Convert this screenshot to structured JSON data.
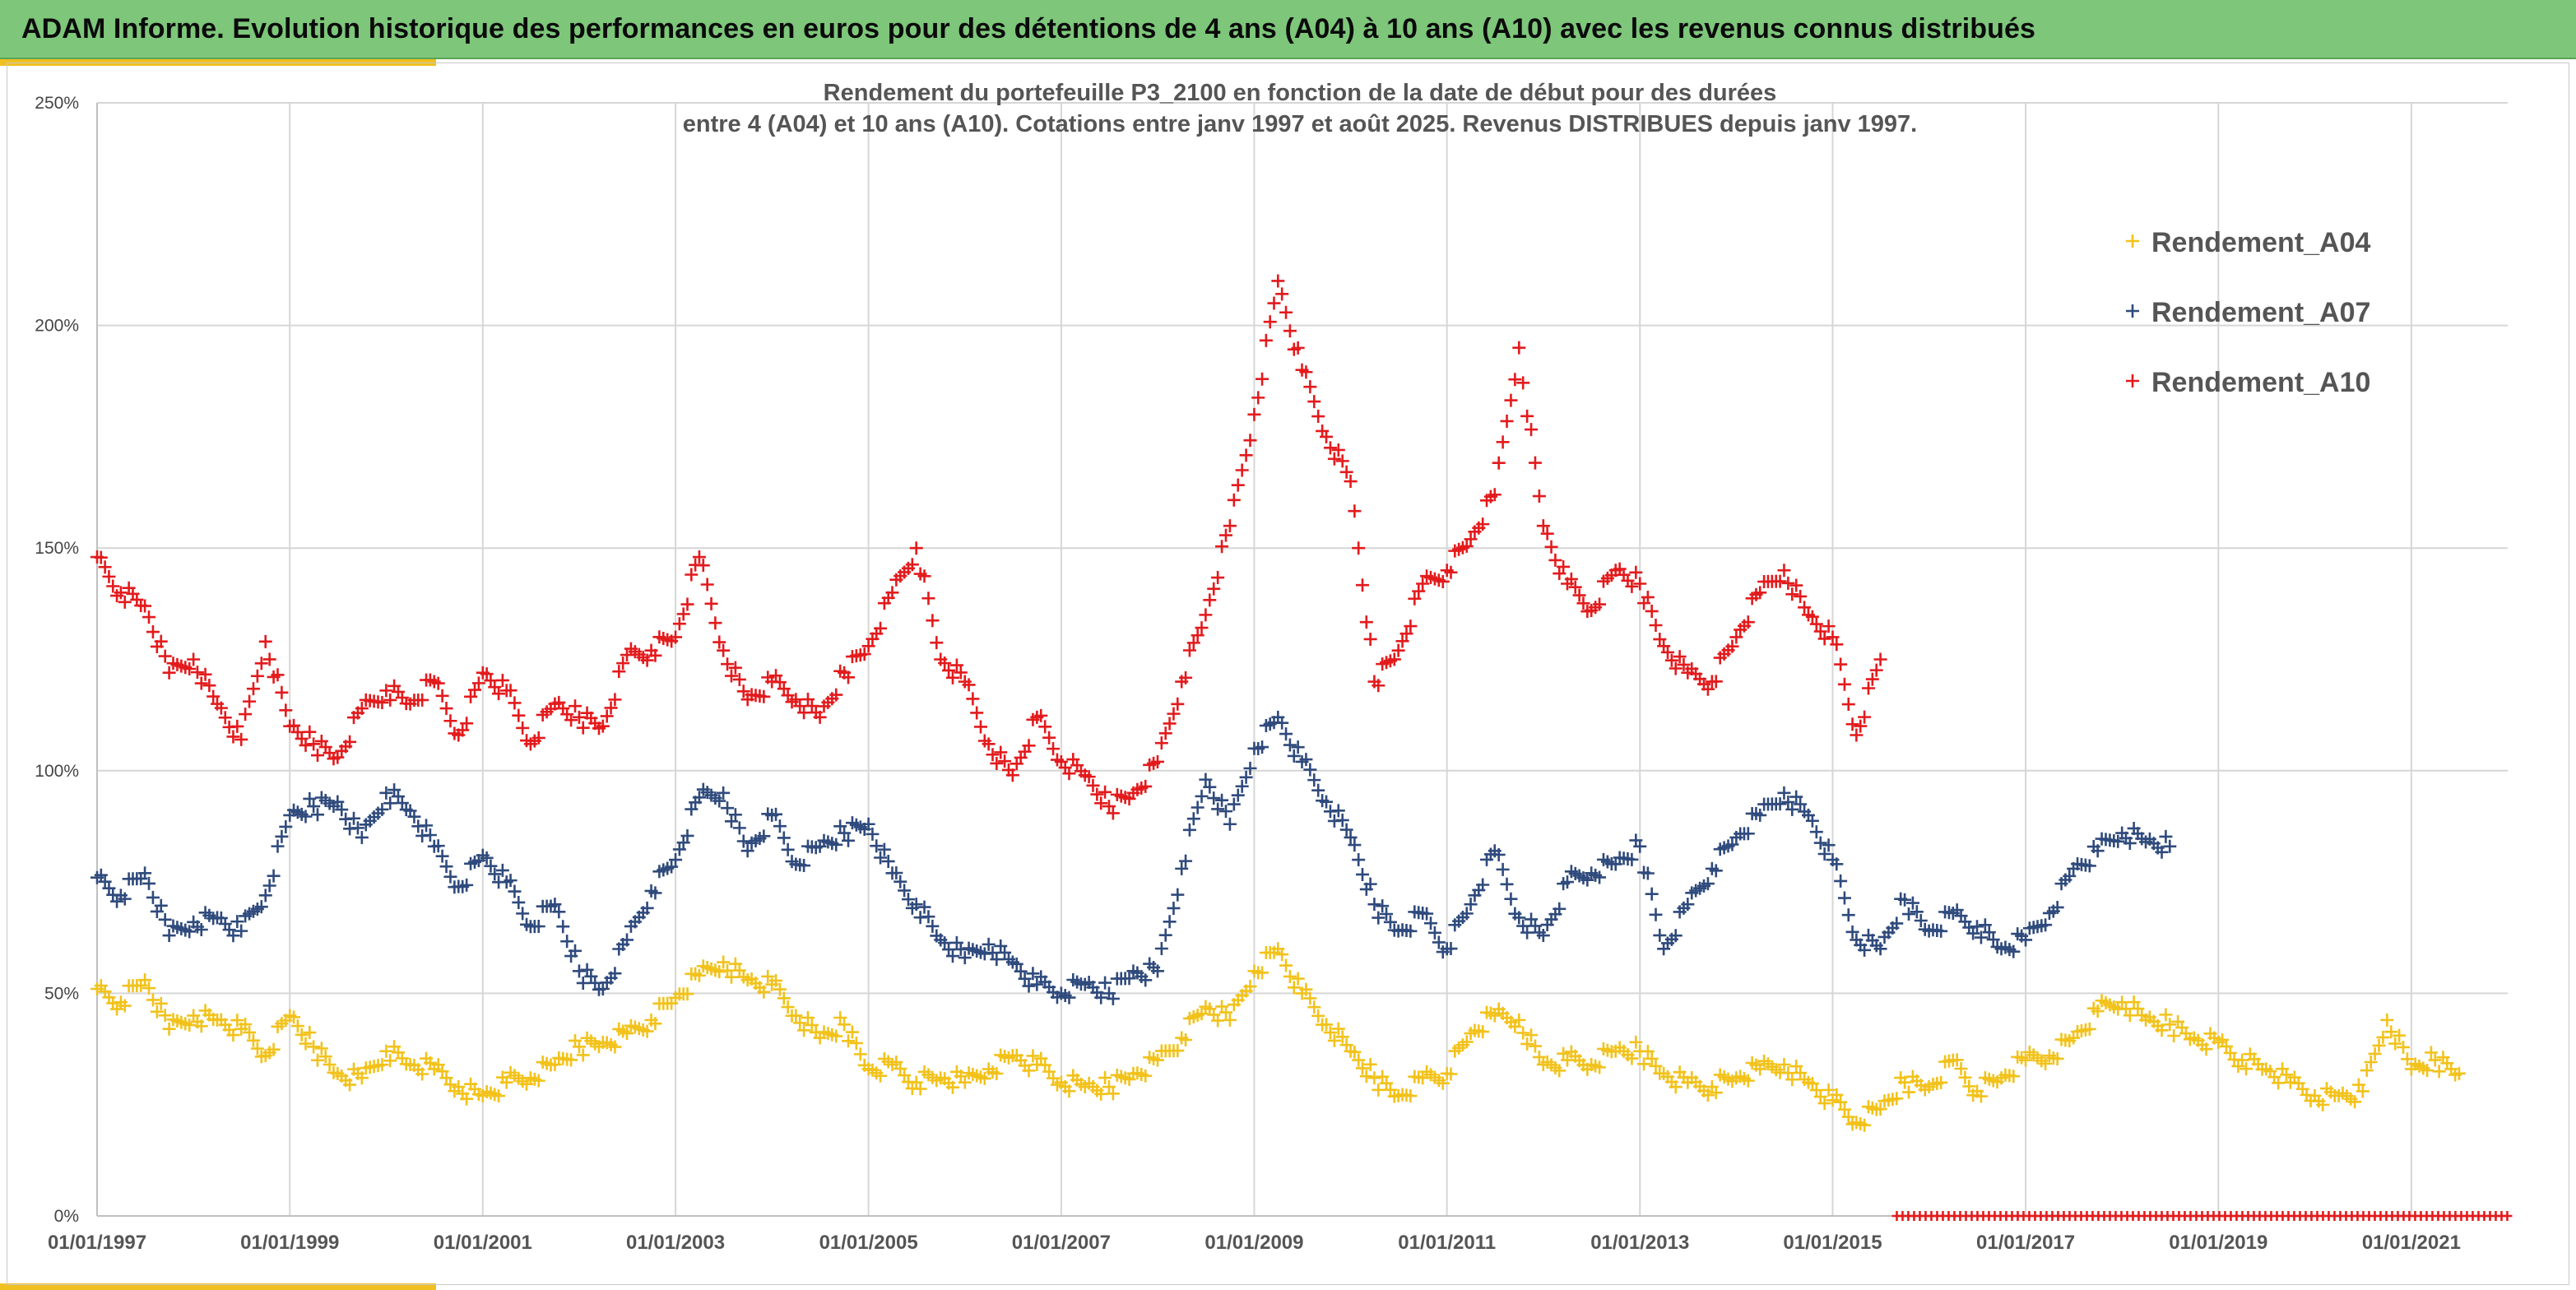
{
  "banner": {
    "title": "ADAM Informe. Evolution historique des performances en euros pour des détentions de 4 ans (A04) à 10 ans (A10) avec les revenus connus distribués"
  },
  "chart_data": {
    "type": "scatter",
    "title_line1": "Rendement du portefeuille P3_2100 en fonction de la date de début pour des durées",
    "title_line2": "entre 4 (A04) et 10 ans (A10). Cotations entre janv 1997 et août 2025. Revenus DISTRIBUES depuis janv 1997.",
    "xlim": [
      "1997-01-01",
      "2022-01-01"
    ],
    "ylim": [
      0,
      2.5
    ],
    "y_ticks": [
      "0%",
      "50%",
      "100%",
      "150%",
      "200%",
      "250%"
    ],
    "x_ticks": [
      "01/01/1997",
      "01/01/1999",
      "01/01/2001",
      "01/01/2003",
      "01/01/2005",
      "01/01/2007",
      "01/01/2009",
      "01/01/2011",
      "01/01/2013",
      "01/01/2015",
      "01/01/2017",
      "01/01/2019",
      "01/01/2021"
    ],
    "grid": true,
    "legend_position": "top-right",
    "colors": {
      "A04": "#f2c21b",
      "A07": "#2f4a7c",
      "A10": "#e31a1c"
    },
    "series": [
      {
        "name": "Rendement_A04",
        "x": [
          "1997-01-01",
          "1997-04-01",
          "1997-07-01",
          "1997-10-01",
          "1998-01-01",
          "1998-04-01",
          "1998-07-01",
          "1998-10-01",
          "1999-01-01",
          "1999-04-01",
          "1999-07-01",
          "1999-10-01",
          "2000-01-01",
          "2000-04-01",
          "2000-07-01",
          "2000-10-01",
          "2001-01-01",
          "2001-04-01",
          "2001-07-01",
          "2001-10-01",
          "2002-01-01",
          "2002-04-01",
          "2002-07-01",
          "2002-10-01",
          "2003-01-01",
          "2003-04-01",
          "2003-07-01",
          "2003-10-01",
          "2004-01-01",
          "2004-04-01",
          "2004-07-01",
          "2004-10-01",
          "2005-01-01",
          "2005-04-01",
          "2005-07-01",
          "2005-10-01",
          "2006-01-01",
          "2006-04-01",
          "2006-07-01",
          "2006-10-01",
          "2007-01-01",
          "2007-04-01",
          "2007-07-01",
          "2007-10-01",
          "2008-01-01",
          "2008-04-01",
          "2008-07-01",
          "2008-10-01",
          "2009-01-01",
          "2009-04-01",
          "2009-07-01",
          "2009-10-01",
          "2010-01-01",
          "2010-04-01",
          "2010-07-01",
          "2010-10-01",
          "2011-01-01",
          "2011-04-01",
          "2011-07-01",
          "2011-10-01",
          "2012-01-01",
          "2012-04-01",
          "2012-07-01",
          "2012-10-01",
          "2013-01-01",
          "2013-04-01",
          "2013-07-01",
          "2013-10-01",
          "2014-01-01",
          "2014-04-01",
          "2014-07-01",
          "2014-10-01",
          "2015-01-01",
          "2015-04-01",
          "2015-07-01",
          "2015-10-01",
          "2016-01-01",
          "2016-04-01",
          "2016-07-01",
          "2016-10-01",
          "2017-01-01",
          "2017-04-01",
          "2017-07-01",
          "2017-10-01",
          "2018-01-01",
          "2018-04-01",
          "2018-07-01",
          "2018-10-01",
          "2019-01-01",
          "2019-04-01",
          "2019-07-01",
          "2019-10-01",
          "2020-01-01",
          "2020-04-01",
          "2020-07-01",
          "2020-10-01",
          "2021-01-01",
          "2021-04-01",
          "2021-07-01"
        ],
        "y": [
          0.51,
          0.48,
          0.53,
          0.42,
          0.45,
          0.44,
          0.42,
          0.36,
          0.45,
          0.38,
          0.32,
          0.31,
          0.37,
          0.34,
          0.33,
          0.29,
          0.27,
          0.3,
          0.31,
          0.34,
          0.38,
          0.39,
          0.41,
          0.44,
          0.49,
          0.54,
          0.57,
          0.53,
          0.52,
          0.45,
          0.4,
          0.43,
          0.33,
          0.34,
          0.3,
          0.31,
          0.3,
          0.33,
          0.36,
          0.34,
          0.3,
          0.29,
          0.29,
          0.32,
          0.35,
          0.4,
          0.47,
          0.44,
          0.55,
          0.6,
          0.5,
          0.43,
          0.37,
          0.31,
          0.27,
          0.31,
          0.32,
          0.41,
          0.45,
          0.44,
          0.34,
          0.35,
          0.34,
          0.37,
          0.37,
          0.32,
          0.3,
          0.29,
          0.31,
          0.33,
          0.34,
          0.3,
          0.26,
          0.21,
          0.24,
          0.3,
          0.29,
          0.35,
          0.28,
          0.31,
          0.35,
          0.36,
          0.4,
          0.46,
          0.48,
          0.44,
          0.43,
          0.4,
          0.39,
          0.35,
          0.33,
          0.3,
          0.27,
          0.27,
          0.28,
          0.44,
          0.33,
          0.35,
          0.32
        ]
      },
      {
        "name": "Rendement_A07",
        "x": [
          "1997-01-01",
          "1997-04-01",
          "1997-07-01",
          "1997-10-01",
          "1998-01-01",
          "1998-04-01",
          "1998-07-01",
          "1998-10-01",
          "1999-01-01",
          "1999-04-01",
          "1999-07-01",
          "1999-10-01",
          "2000-01-01",
          "2000-04-01",
          "2000-07-01",
          "2000-10-01",
          "2001-01-01",
          "2001-04-01",
          "2001-07-01",
          "2001-10-01",
          "2002-01-01",
          "2002-04-01",
          "2002-07-01",
          "2002-10-01",
          "2003-01-01",
          "2003-04-01",
          "2003-07-01",
          "2003-10-01",
          "2004-01-01",
          "2004-04-01",
          "2004-07-01",
          "2004-10-01",
          "2005-01-01",
          "2005-04-01",
          "2005-07-01",
          "2005-10-01",
          "2006-01-01",
          "2006-04-01",
          "2006-07-01",
          "2006-10-01",
          "2007-01-01",
          "2007-04-01",
          "2007-07-01",
          "2007-10-01",
          "2008-01-01",
          "2008-04-01",
          "2008-07-01",
          "2008-10-01",
          "2009-01-01",
          "2009-04-01",
          "2009-07-01",
          "2009-10-01",
          "2010-01-01",
          "2010-04-01",
          "2010-07-01",
          "2010-10-01",
          "2011-01-01",
          "2011-04-01",
          "2011-07-01",
          "2011-10-01",
          "2012-01-01",
          "2012-04-01",
          "2012-07-01",
          "2012-10-01",
          "2013-01-01",
          "2013-04-01",
          "2013-07-01",
          "2013-10-01",
          "2014-01-01",
          "2014-04-01",
          "2014-07-01",
          "2014-10-01",
          "2015-01-01",
          "2015-04-01",
          "2015-07-01",
          "2015-10-01",
          "2016-01-01",
          "2016-04-01",
          "2016-07-01",
          "2016-10-01",
          "2017-01-01",
          "2017-04-01",
          "2017-07-01",
          "2017-10-01",
          "2018-01-01",
          "2018-04-01",
          "2018-07-01"
        ],
        "y": [
          0.76,
          0.72,
          0.77,
          0.63,
          0.66,
          0.67,
          0.64,
          0.72,
          0.9,
          0.92,
          0.93,
          0.85,
          0.95,
          0.91,
          0.83,
          0.74,
          0.81,
          0.75,
          0.65,
          0.7,
          0.55,
          0.51,
          0.62,
          0.73,
          0.8,
          0.94,
          0.95,
          0.82,
          0.9,
          0.79,
          0.83,
          0.86,
          0.88,
          0.77,
          0.7,
          0.62,
          0.58,
          0.61,
          0.57,
          0.52,
          0.5,
          0.52,
          0.5,
          0.55,
          0.55,
          0.78,
          0.98,
          0.88,
          1.05,
          1.12,
          1.02,
          0.93,
          0.85,
          0.7,
          0.64,
          0.68,
          0.6,
          0.7,
          0.82,
          0.67,
          0.63,
          0.75,
          0.77,
          0.79,
          0.83,
          0.6,
          0.7,
          0.78,
          0.85,
          0.9,
          0.95,
          0.9,
          0.8,
          0.62,
          0.6,
          0.71,
          0.64,
          0.68,
          0.65,
          0.6,
          0.62,
          0.68,
          0.78,
          0.82,
          0.86,
          0.84,
          0.83
        ]
      },
      {
        "name": "Rendement_A10",
        "x": [
          "1997-01-01",
          "1997-04-01",
          "1997-07-01",
          "1997-10-01",
          "1998-01-01",
          "1998-04-01",
          "1998-07-01",
          "1998-10-01",
          "1999-01-01",
          "1999-04-01",
          "1999-07-01",
          "1999-10-01",
          "2000-01-01",
          "2000-04-01",
          "2000-07-01",
          "2000-10-01",
          "2001-01-01",
          "2001-04-01",
          "2001-07-01",
          "2001-10-01",
          "2002-01-01",
          "2002-04-01",
          "2002-07-01",
          "2002-10-01",
          "2003-01-01",
          "2003-04-01",
          "2003-07-01",
          "2003-10-01",
          "2004-01-01",
          "2004-04-01",
          "2004-07-01",
          "2004-10-01",
          "2005-01-01",
          "2005-04-01",
          "2005-07-01",
          "2005-10-01",
          "2006-01-01",
          "2006-04-01",
          "2006-07-01",
          "2006-10-01",
          "2007-01-01",
          "2007-04-01",
          "2007-07-01",
          "2007-10-01",
          "2008-01-01",
          "2008-04-01",
          "2008-07-01",
          "2008-10-01",
          "2009-01-01",
          "2009-04-01",
          "2009-07-01",
          "2009-10-01",
          "2010-01-01",
          "2010-04-01",
          "2010-07-01",
          "2010-10-01",
          "2011-01-01",
          "2011-04-01",
          "2011-07-01",
          "2011-10-01",
          "2012-01-01",
          "2012-04-01",
          "2012-07-01",
          "2012-10-01",
          "2013-01-01",
          "2013-04-01",
          "2013-07-01",
          "2013-10-01",
          "2014-01-01",
          "2014-04-01",
          "2014-07-01",
          "2014-10-01",
          "2015-01-01",
          "2015-04-01",
          "2015-07-01"
        ],
        "y": [
          1.48,
          1.4,
          1.37,
          1.22,
          1.25,
          1.15,
          1.07,
          1.29,
          1.1,
          1.06,
          1.03,
          1.14,
          1.18,
          1.15,
          1.2,
          1.08,
          1.22,
          1.18,
          1.06,
          1.15,
          1.12,
          1.1,
          1.26,
          1.27,
          1.3,
          1.48,
          1.27,
          1.16,
          1.2,
          1.16,
          1.12,
          1.22,
          1.28,
          1.4,
          1.5,
          1.25,
          1.2,
          1.06,
          0.99,
          1.12,
          1.02,
          0.99,
          0.92,
          0.95,
          1.02,
          1.2,
          1.35,
          1.55,
          1.8,
          2.1,
          1.9,
          1.75,
          1.65,
          1.2,
          1.27,
          1.42,
          1.45,
          1.52,
          1.62,
          1.95,
          1.55,
          1.42,
          1.36,
          1.45,
          1.42,
          1.28,
          1.22,
          1.2,
          1.3,
          1.4,
          1.45,
          1.35,
          1.3,
          1.08,
          1.25
        ]
      },
      {
        "name": "",
        "x": [
          "2015-09-01",
          "2022-01-01"
        ],
        "y": [
          0,
          0
        ]
      }
    ]
  }
}
